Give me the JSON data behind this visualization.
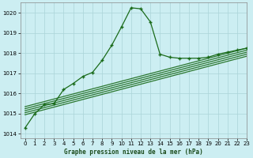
{
  "title": "Graphe pression niveau de la mer (hPa)",
  "background_color": "#cceef2",
  "grid_color": "#aad4d8",
  "line_color": "#1a6b1a",
  "xlim": [
    -0.5,
    23
  ],
  "ylim": [
    1013.8,
    1020.5
  ],
  "yticks": [
    1014,
    1015,
    1016,
    1017,
    1018,
    1019,
    1020
  ],
  "xticks": [
    0,
    1,
    2,
    3,
    4,
    5,
    6,
    7,
    8,
    9,
    10,
    11,
    12,
    13,
    14,
    15,
    16,
    17,
    18,
    19,
    20,
    21,
    22,
    23
  ],
  "main_series": [
    [
      0,
      1014.3
    ],
    [
      1,
      1015.0
    ],
    [
      2,
      1015.45
    ],
    [
      3,
      1015.5
    ],
    [
      4,
      1016.2
    ],
    [
      5,
      1016.5
    ],
    [
      6,
      1016.85
    ],
    [
      7,
      1017.05
    ],
    [
      8,
      1017.65
    ],
    [
      9,
      1018.4
    ],
    [
      10,
      1019.3
    ],
    [
      11,
      1020.25
    ],
    [
      12,
      1020.2
    ],
    [
      13,
      1019.55
    ],
    [
      14,
      1017.95
    ],
    [
      15,
      1017.8
    ],
    [
      16,
      1017.75
    ],
    [
      17,
      1017.75
    ],
    [
      18,
      1017.75
    ],
    [
      19,
      1017.8
    ],
    [
      20,
      1017.95
    ],
    [
      21,
      1018.05
    ],
    [
      22,
      1018.15
    ],
    [
      23,
      1018.25
    ]
  ],
  "band_series": [
    [
      [
        0,
        1015.35
      ],
      [
        23,
        1018.25
      ]
    ],
    [
      [
        0,
        1015.25
      ],
      [
        23,
        1018.15
      ]
    ],
    [
      [
        0,
        1015.15
      ],
      [
        23,
        1018.05
      ]
    ],
    [
      [
        0,
        1015.05
      ],
      [
        23,
        1017.95
      ]
    ],
    [
      [
        0,
        1014.95
      ],
      [
        23,
        1017.85
      ]
    ]
  ]
}
